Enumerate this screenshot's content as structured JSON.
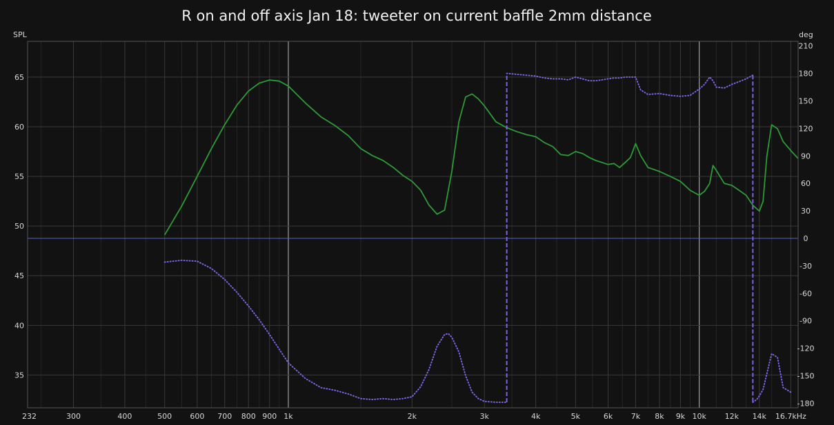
{
  "chart_data": {
    "type": "line",
    "title": "R on and off axis Jan 18: tweeter on current baffle 2mm distance",
    "x_scale": "log",
    "x_unit": "Hz",
    "xlim": [
      232,
      17400
    ],
    "x_ticks": [
      {
        "value": 232,
        "label": "232"
      },
      {
        "value": 300,
        "label": "300"
      },
      {
        "value": 400,
        "label": "400"
      },
      {
        "value": 500,
        "label": "500"
      },
      {
        "value": 600,
        "label": "600"
      },
      {
        "value": 700,
        "label": "700"
      },
      {
        "value": 800,
        "label": "800"
      },
      {
        "value": 900,
        "label": "900"
      },
      {
        "value": 1000,
        "label": "1k"
      },
      {
        "value": 2000,
        "label": "2k"
      },
      {
        "value": 3000,
        "label": "3k"
      },
      {
        "value": 4000,
        "label": "4k"
      },
      {
        "value": 5000,
        "label": "5k"
      },
      {
        "value": 6000,
        "label": "6k"
      },
      {
        "value": 7000,
        "label": "7k"
      },
      {
        "value": 8000,
        "label": "8k"
      },
      {
        "value": 9000,
        "label": "9k"
      },
      {
        "value": 10000,
        "label": "10k"
      },
      {
        "value": 12000,
        "label": "12k"
      },
      {
        "value": 14000,
        "label": "14k"
      },
      {
        "value": 16700,
        "label": "16.7kHz"
      }
    ],
    "x_minor_grid": [
      250,
      350,
      450,
      550,
      650,
      750,
      850,
      950,
      1500,
      2500,
      3500,
      4500,
      5500,
      6500,
      7500,
      8500,
      9500,
      11000,
      13000,
      15000
    ],
    "x_major_grid": [
      1000,
      10000
    ],
    "y_left": {
      "label": "SPL",
      "lim": [
        31.7,
        68.6
      ],
      "ticks": [
        35,
        40,
        45,
        50,
        55,
        60,
        65
      ]
    },
    "y_right": {
      "label": "deg",
      "lim": [
        -185,
        215
      ],
      "ticks": [
        -180,
        -150,
        -120,
        -90,
        -60,
        -30,
        0,
        30,
        60,
        90,
        120,
        150,
        180,
        210
      ]
    },
    "zero_line_deg": 0,
    "grid": true,
    "colors": {
      "background": "#121212",
      "grid": "#3a3a3a",
      "major_grid": "#bdbdbd",
      "spl": "#2e9a38",
      "phase": "#7e62e0",
      "zero_line": "#5566cc"
    },
    "series": [
      {
        "axis": "left",
        "style": "solid",
        "x": [
          500,
          550,
          600,
          650,
          700,
          750,
          800,
          850,
          900,
          950,
          1000,
          1100,
          1200,
          1300,
          1400,
          1500,
          1600,
          1700,
          1800,
          1900,
          2000,
          2100,
          2200,
          2300,
          2400,
          2500,
          2600,
          2700,
          2800,
          2900,
          3000,
          3200,
          3400,
          3600,
          3800,
          4000,
          4200,
          4400,
          4600,
          4800,
          5000,
          5200,
          5400,
          5600,
          5800,
          6000,
          6200,
          6400,
          6600,
          6800,
          7000,
          7200,
          7500,
          8000,
          8500,
          9000,
          9500,
          10000,
          10300,
          10600,
          10800,
          11000,
          11500,
          12000,
          12500,
          13000,
          13500,
          14000,
          14300,
          14600,
          15000,
          15500,
          16000,
          16700,
          17400
        ],
        "values": [
          49.1,
          52.0,
          55.0,
          57.8,
          60.2,
          62.2,
          63.6,
          64.4,
          64.7,
          64.6,
          64.1,
          62.4,
          61.0,
          60.1,
          59.1,
          57.8,
          57.1,
          56.6,
          55.9,
          55.1,
          54.5,
          53.6,
          52.1,
          51.2,
          51.6,
          55.5,
          60.5,
          63.0,
          63.3,
          62.8,
          62.1,
          60.5,
          59.9,
          59.5,
          59.2,
          59.0,
          58.4,
          58.0,
          57.2,
          57.1,
          57.5,
          57.3,
          56.9,
          56.6,
          56.4,
          56.2,
          56.3,
          55.9,
          56.4,
          56.9,
          58.3,
          57.1,
          55.9,
          55.5,
          55.0,
          54.5,
          53.6,
          53.1,
          53.5,
          54.3,
          56.1,
          55.6,
          54.3,
          54.1,
          53.6,
          53.1,
          52.1,
          51.5,
          52.5,
          57.0,
          60.2,
          59.8,
          58.5,
          57.6,
          56.8
        ]
      },
      {
        "axis": "right",
        "style": "dotted",
        "x": [
          500,
          550,
          600,
          650,
          700,
          750,
          800,
          850,
          900,
          950,
          1000,
          1100,
          1200,
          1300,
          1400,
          1500,
          1600,
          1700,
          1800,
          1900,
          2000,
          2100,
          2200,
          2300,
          2400,
          2450,
          2500,
          2600,
          2700,
          2800,
          2900,
          3000,
          3200,
          3400,
          3400,
          3600,
          3800,
          4000,
          4200,
          4400,
          4600,
          4800,
          5000,
          5200,
          5400,
          5600,
          5800,
          6000,
          6200,
          6400,
          6600,
          6800,
          7000,
          7200,
          7500,
          8000,
          8500,
          9000,
          9500,
          10000,
          10300,
          10600,
          10800,
          11000,
          11500,
          12000,
          12500,
          13000,
          13500,
          13500,
          13800,
          14000,
          14300,
          14600,
          15000,
          15500,
          16000,
          16700
        ],
        "values": [
          -26,
          -24,
          -25,
          -33,
          -45,
          -59,
          -74,
          -89,
          -105,
          -121,
          -136,
          -153,
          -163,
          -166,
          -170,
          -175,
          -176,
          -175,
          -176,
          -175,
          -173,
          -162,
          -143,
          -118,
          -105,
          -104,
          -108,
          -124,
          -150,
          -168,
          -175,
          -178,
          -179,
          -179,
          180,
          179,
          178,
          177,
          175,
          174,
          174,
          173,
          176,
          174,
          172,
          172,
          173,
          174,
          175,
          175,
          176,
          176,
          176,
          162,
          157,
          158,
          156,
          155,
          156,
          163,
          168,
          176,
          172,
          165,
          164,
          168,
          171,
          174,
          178,
          -179,
          -176,
          -172,
          -165,
          -148,
          -126,
          -130,
          -163,
          -168
        ]
      }
    ]
  }
}
